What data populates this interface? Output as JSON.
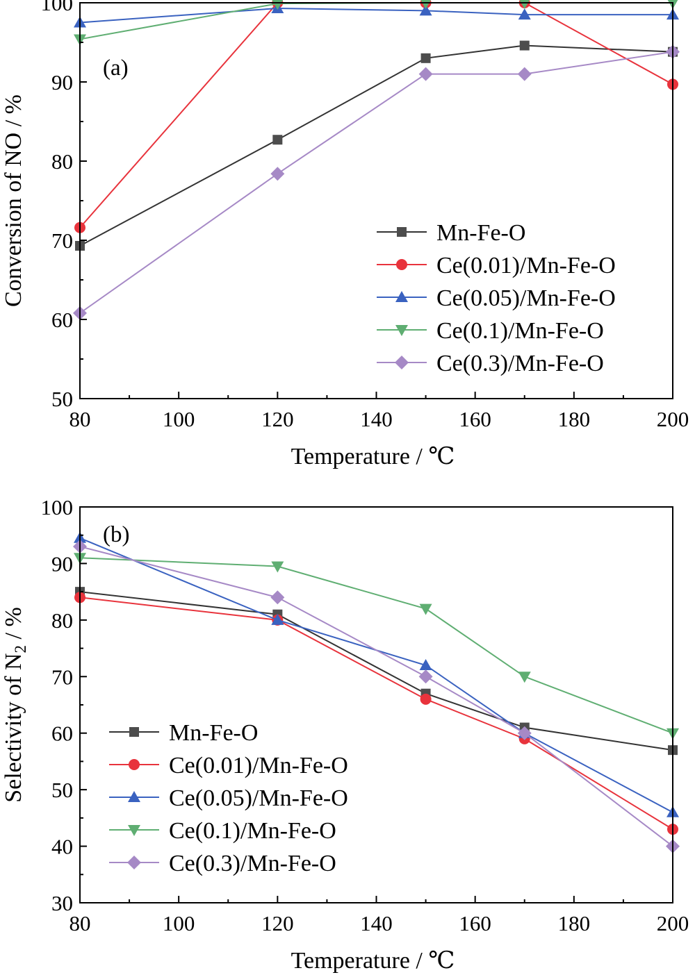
{
  "chart_data": [
    {
      "type": "line",
      "panel_label": "(a)",
      "xlabel": "Temperature / ℃",
      "ylabel": "Conversion of NO / %",
      "xlim": [
        80,
        200
      ],
      "ylim": [
        50,
        100
      ],
      "xticks": [
        80,
        100,
        120,
        140,
        160,
        180,
        200
      ],
      "yticks": [
        50,
        60,
        70,
        80,
        90,
        100
      ],
      "legend_position": "lower-right",
      "x": [
        80,
        120,
        150,
        170,
        200
      ],
      "series": [
        {
          "name": "Mn-Fe-O",
          "marker": "square",
          "color": "#4d4d4d",
          "line_color": "#333333",
          "values": [
            69.3,
            82.7,
            93.0,
            94.6,
            93.8
          ]
        },
        {
          "name": "Ce(0.01)/Mn-Fe-O",
          "marker": "circle",
          "color": "#e8333c",
          "line_color": "#e8333c",
          "values": [
            71.6,
            100.0,
            100.0,
            100.0,
            89.7
          ]
        },
        {
          "name": "Ce(0.05)/Mn-Fe-O",
          "marker": "triangle-up",
          "color": "#3a62c0",
          "line_color": "#3a62c0",
          "values": [
            97.5,
            99.3,
            99.0,
            98.5,
            98.5
          ]
        },
        {
          "name": "Ce(0.1)/Mn-Fe-O",
          "marker": "triangle-down",
          "color": "#5fae72",
          "line_color": "#5fae72",
          "values": [
            95.4,
            99.9,
            100.0,
            100.0,
            100.0
          ]
        },
        {
          "name": "Ce(0.3)/Mn-Fe-O",
          "marker": "diamond",
          "color": "#a689c6",
          "line_color": "#a689c6",
          "values": [
            60.8,
            78.4,
            91.0,
            91.0,
            93.8
          ]
        }
      ]
    },
    {
      "type": "line",
      "panel_label": "(b)",
      "xlabel": "Temperature / ℃",
      "ylabel": "Selectivity of N",
      "ylabel_subscript": "2",
      "ylabel_suffix": " / %",
      "xlim": [
        80,
        200
      ],
      "ylim": [
        30,
        100
      ],
      "xticks": [
        80,
        100,
        120,
        140,
        160,
        180,
        200
      ],
      "yticks": [
        30,
        40,
        50,
        60,
        70,
        80,
        90,
        100
      ],
      "legend_position": "lower-left",
      "x": [
        80,
        120,
        150,
        170,
        200
      ],
      "series": [
        {
          "name": "Mn-Fe-O",
          "marker": "square",
          "color": "#4d4d4d",
          "line_color": "#333333",
          "values": [
            85.0,
            81.0,
            67.0,
            61.0,
            57.0
          ]
        },
        {
          "name": "Ce(0.01)/Mn-Fe-O",
          "marker": "circle",
          "color": "#e8333c",
          "line_color": "#e8333c",
          "values": [
            84.0,
            80.0,
            66.0,
            59.0,
            43.0
          ]
        },
        {
          "name": "Ce(0.05)/Mn-Fe-O",
          "marker": "triangle-up",
          "color": "#3a62c0",
          "line_color": "#3a62c0",
          "values": [
            94.5,
            80.0,
            72.0,
            60.0,
            46.0
          ]
        },
        {
          "name": "Ce(0.1)/Mn-Fe-O",
          "marker": "triangle-down",
          "color": "#5fae72",
          "line_color": "#5fae72",
          "values": [
            91.0,
            89.5,
            82.0,
            70.0,
            60.0
          ]
        },
        {
          "name": "Ce(0.3)/Mn-Fe-O",
          "marker": "diamond",
          "color": "#a689c6",
          "line_color": "#a689c6",
          "values": [
            93.0,
            84.0,
            70.0,
            60.0,
            40.0
          ]
        }
      ]
    }
  ]
}
